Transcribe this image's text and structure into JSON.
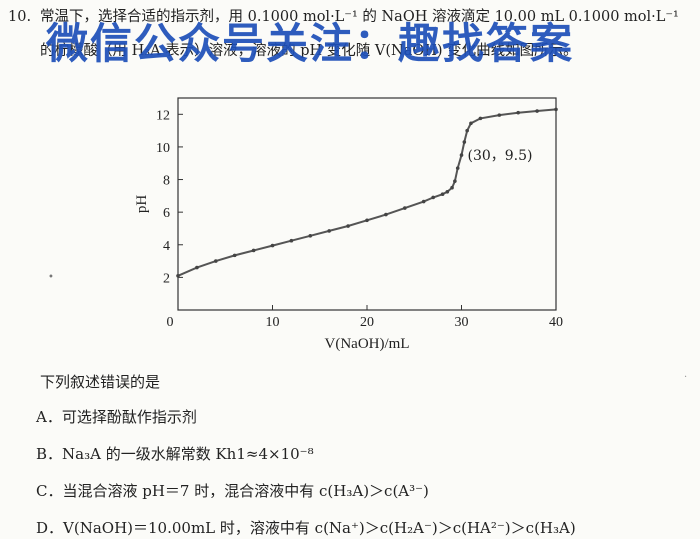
{
  "question": {
    "number": "10.",
    "line1": "常温下，选择合适的指示剂，用 0.1000 mol·L⁻¹ 的 NaOH 溶液滴定 10.00 mL 0.1000 mol·L⁻¹",
    "line2": "的柠檬酸（用 H₃A 表示）溶液，溶液的 pH 变化随 V(NaOH) 变化曲线如图所示。"
  },
  "watermark": "微信公众号关注：趣找答案",
  "chart_data": {
    "type": "line",
    "xlabel": "V(NaOH)/mL",
    "ylabel": "pH",
    "xlim": [
      0,
      40
    ],
    "ylim": [
      0,
      13
    ],
    "x_ticks": [
      0,
      10,
      20,
      30,
      40
    ],
    "y_ticks": [
      2,
      4,
      6,
      8,
      10,
      12
    ],
    "annotation": {
      "text": "(30，9.5)",
      "x": 30,
      "y": 9.5
    },
    "x": [
      0,
      2,
      4,
      6,
      8,
      10,
      12,
      14,
      16,
      18,
      20,
      22,
      24,
      26,
      27,
      28,
      28.5,
      29,
      29.3,
      29.6,
      30,
      30.3,
      30.6,
      31,
      32,
      34,
      36,
      38,
      40
    ],
    "y": [
      2.1,
      2.6,
      3.0,
      3.35,
      3.65,
      3.95,
      4.25,
      4.55,
      4.85,
      5.15,
      5.5,
      5.85,
      6.25,
      6.65,
      6.9,
      7.1,
      7.25,
      7.5,
      7.9,
      8.7,
      9.5,
      10.3,
      11.0,
      11.45,
      11.75,
      11.95,
      12.1,
      12.2,
      12.3
    ],
    "grid": false
  },
  "intro": "下列叙述错误的是",
  "options": [
    {
      "label": "A．可选择酚酞作指示剂"
    },
    {
      "label": "B．Na₃A 的一级水解常数 Kh1≈4×10⁻⁸"
    },
    {
      "label": "C．当混合溶液 pH＝7 时，混合溶液中有 c(H₃A)＞c(A³⁻)"
    },
    {
      "label": "D．V(NaOH)＝10.00mL 时，溶液中有 c(Na⁺)＞c(H₂A⁻)＞c(HA²⁻)＞c(H₃A)"
    }
  ]
}
